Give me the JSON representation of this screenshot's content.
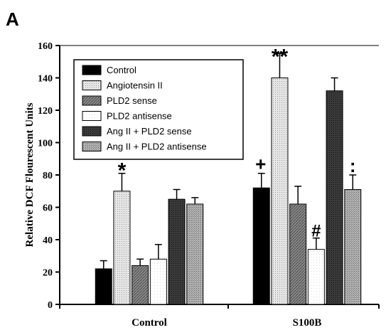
{
  "panel_label": "A",
  "colors": {
    "Control": "#000000",
    "Angiotensin II": "#d9d9d9",
    "PLD2 sense": "#777777",
    "PLD2 antisense": "#ffffff",
    "Ang II + PLD2 sense": "#2b2b2b",
    "Ang II + PLD2 antisense": "#a8a8a8"
  },
  "chart_data": {
    "type": "bar",
    "title": "",
    "xlabel": "",
    "ylabel": "Relative DCF Flourescent Units",
    "ylim": [
      0,
      160
    ],
    "yticks": [
      0,
      20,
      40,
      60,
      80,
      100,
      120,
      140,
      160
    ],
    "grid": false,
    "legend_position": "top-left",
    "categories": [
      "Control",
      "S100B"
    ],
    "series": [
      {
        "name": "Control",
        "values": [
          22,
          72
        ],
        "errors": [
          5,
          9
        ]
      },
      {
        "name": "Angiotensin II",
        "values": [
          70,
          140
        ],
        "errors": [
          11,
          15
        ]
      },
      {
        "name": "PLD2 sense",
        "values": [
          24,
          62
        ],
        "errors": [
          4,
          11
        ]
      },
      {
        "name": "PLD2 antisense",
        "values": [
          28,
          34
        ],
        "errors": [
          9,
          7
        ]
      },
      {
        "name": "Ang II + PLD2 sense",
        "values": [
          65,
          132
        ],
        "errors": [
          6,
          8
        ]
      },
      {
        "name": "Ang II + PLD2 antisense",
        "values": [
          62,
          71
        ],
        "errors": [
          4,
          9
        ]
      }
    ],
    "annotations": [
      {
        "text": "*",
        "category": 0,
        "series": 1
      },
      {
        "text": "**",
        "category": 1,
        "series": 1
      },
      {
        "text": "+",
        "category": 1,
        "series": 0
      },
      {
        "text": "#",
        "category": 1,
        "series": 3
      },
      {
        "text": ":",
        "category": 1,
        "series": 5
      }
    ]
  }
}
